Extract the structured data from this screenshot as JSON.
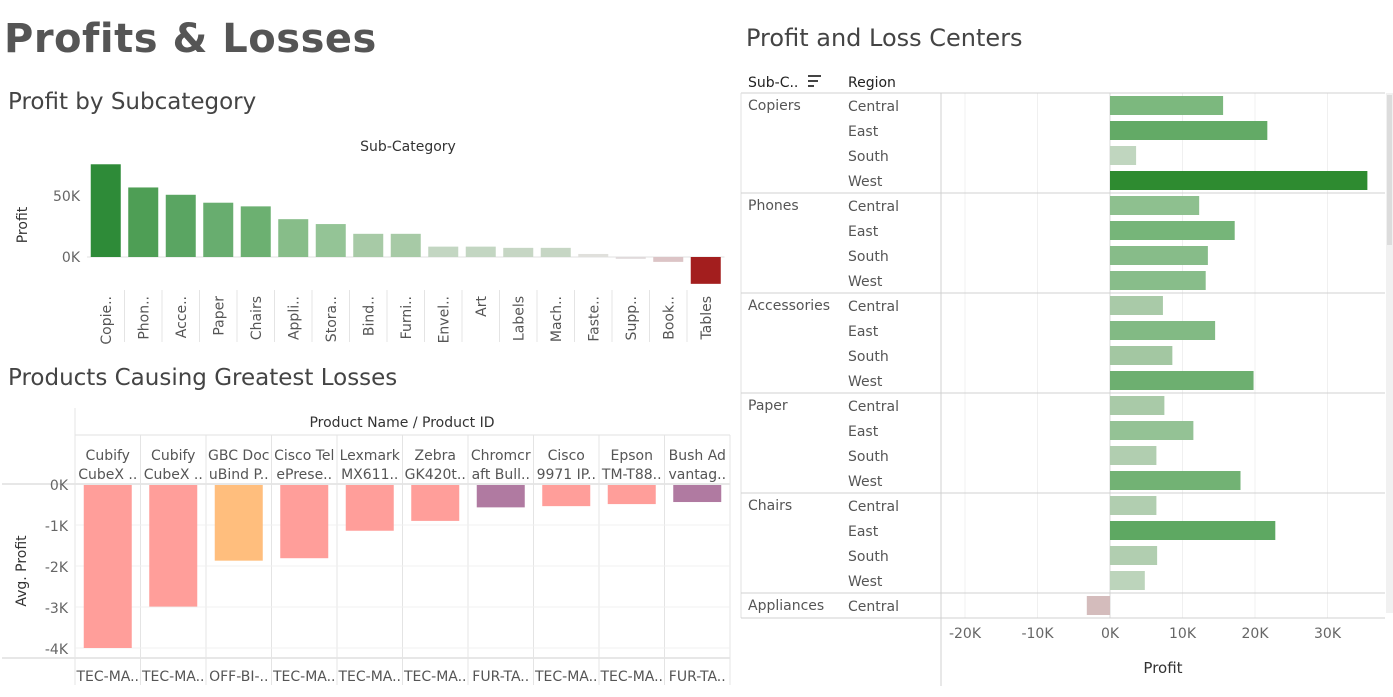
{
  "page": {
    "title": "Profits & Losses"
  },
  "charts": {
    "subcategory": {
      "title": "Profit by Subcategory"
    },
    "products": {
      "title": "Products Causing Greatest Losses"
    },
    "centers": {
      "title": "Profit and Loss Centers"
    }
  },
  "chart_data": [
    {
      "type": "bar",
      "title": "Profit by Subcategory",
      "header": "Sub-Category",
      "ylabel": "Profit",
      "y_ticks": [
        "50K",
        "0K"
      ],
      "ylim": [
        -22000,
        80000
      ],
      "categories": [
        "Copie..",
        "Phon..",
        "Acce..",
        "Paper",
        "Chairs",
        "Appli..",
        "Stora..",
        "Bind..",
        "Furni..",
        "Envel..",
        "Art",
        "Labels",
        "Mach..",
        "Faste..",
        "Supp..",
        "Book..",
        "Tables"
      ],
      "values": [
        76000,
        57000,
        51000,
        44500,
        41500,
        31000,
        27000,
        19000,
        19000,
        8500,
        8500,
        7500,
        7500,
        2500,
        -1500,
        -4000,
        -22000
      ],
      "colors": [
        "#2e8b38",
        "#4e9e55",
        "#5aa562",
        "#68ad6f",
        "#6cb071",
        "#87bd89",
        "#94c496",
        "#a7caa6",
        "#a7caa6",
        "#c3d6c2",
        "#c3d6c2",
        "#c6d6c4",
        "#c6d6c4",
        "#e0e0dc",
        "#e0dadb",
        "#dcc4c6",
        "#a31e1e"
      ]
    },
    {
      "type": "bar",
      "title": "Products Causing Greatest Losses",
      "header": "Product Name / Product ID",
      "ylabel": "Avg. Profit",
      "y_ticks": [
        "0K",
        "-1K",
        "-2K",
        "-3K",
        "-4K"
      ],
      "ylim": [
        -4300,
        300
      ],
      "categories": [
        [
          "Cubify",
          "CubeX .."
        ],
        [
          "Cubify",
          "CubeX .."
        ],
        [
          "GBC Doc",
          "uBind P.."
        ],
        [
          "Cisco Tel",
          "ePrese.."
        ],
        [
          "Lexmark",
          "MX611.."
        ],
        [
          "Zebra",
          "GK420t.."
        ],
        [
          "Chromcr",
          "aft Bull.."
        ],
        [
          "Cisco",
          "9971 IP.."
        ],
        [
          "Epson",
          "TM-T88.."
        ],
        [
          "Bush Ad",
          "vantag.."
        ]
      ],
      "ids": [
        "TEC-MA..",
        "TEC-MA..",
        "OFF-BI-..",
        "TEC-MA..",
        "TEC-MA..",
        "TEC-MA..",
        "FUR-TA..",
        "TEC-MA..",
        "TEC-MA..",
        "FUR-TA.."
      ],
      "values": [
        -4000,
        -2990,
        -1870,
        -1810,
        -1140,
        -900,
        -570,
        -540,
        -490,
        -440
      ],
      "colors": [
        "#ff9e9a",
        "#ff9e9a",
        "#ffbe7d",
        "#ff9e9a",
        "#ff9e9a",
        "#ff9e9a",
        "#b07aa1",
        "#ff9e9a",
        "#ff9e9a",
        "#b07aa1"
      ]
    },
    {
      "type": "bar",
      "orientation": "horizontal",
      "title": "Profit and Loss Centers",
      "row_headers": [
        "Sub-C..",
        "Region"
      ],
      "xlabel": "Profit",
      "x_ticks": [
        "-20K",
        "-10K",
        "0K",
        "10K",
        "20K",
        "30K"
      ],
      "x_tick_values": [
        -20000,
        -10000,
        0,
        10000,
        20000,
        30000
      ],
      "xlim": [
        -23000,
        38000
      ],
      "groups": [
        {
          "name": "Copiers",
          "rows": [
            {
              "region": "Central",
              "value": 15600,
              "color": "#7cb87e"
            },
            {
              "region": "East",
              "value": 21700,
              "color": "#63aa66"
            },
            {
              "region": "South",
              "value": 3600,
              "color": "#c0d6bf"
            },
            {
              "region": "West",
              "value": 35500,
              "color": "#2e8b30"
            }
          ]
        },
        {
          "name": "Phones",
          "rows": [
            {
              "region": "Central",
              "value": 12300,
              "color": "#8ec08f"
            },
            {
              "region": "East",
              "value": 17200,
              "color": "#76b579"
            },
            {
              "region": "South",
              "value": 13500,
              "color": "#87bc89"
            },
            {
              "region": "West",
              "value": 13200,
              "color": "#88bd8a"
            }
          ]
        },
        {
          "name": "Accessories",
          "rows": [
            {
              "region": "Central",
              "value": 7300,
              "color": "#a9caa8"
            },
            {
              "region": "East",
              "value": 14500,
              "color": "#82ba84"
            },
            {
              "region": "South",
              "value": 8600,
              "color": "#a3c7a2"
            },
            {
              "region": "West",
              "value": 19800,
              "color": "#6daf70"
            }
          ]
        },
        {
          "name": "Paper",
          "rows": [
            {
              "region": "Central",
              "value": 7500,
              "color": "#a9caa8"
            },
            {
              "region": "East",
              "value": 11500,
              "color": "#94c295"
            },
            {
              "region": "South",
              "value": 6400,
              "color": "#b1ceb0"
            },
            {
              "region": "West",
              "value": 18000,
              "color": "#72b274"
            }
          ]
        },
        {
          "name": "Chairs",
          "rows": [
            {
              "region": "Central",
              "value": 6400,
              "color": "#b1ceb0"
            },
            {
              "region": "East",
              "value": 22800,
              "color": "#5ea862"
            },
            {
              "region": "South",
              "value": 6500,
              "color": "#b1ceb0"
            },
            {
              "region": "West",
              "value": 4800,
              "color": "#bcd4bb"
            }
          ]
        },
        {
          "name": "Appliances",
          "rows": [
            {
              "region": "Central",
              "value": -3200,
              "color": "#d4bcbc"
            }
          ]
        }
      ]
    }
  ]
}
